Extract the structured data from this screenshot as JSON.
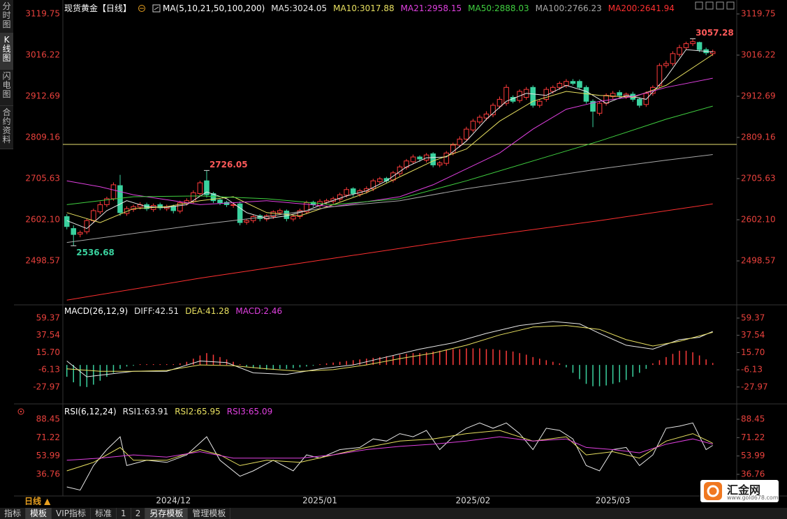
{
  "sidebar": {
    "tabs": [
      "分时图",
      "K线图",
      "闪电图",
      "合约资料"
    ]
  },
  "period": "日线 ▲",
  "toolbar": [
    "指标",
    "模板",
    "VIP指标",
    "标准",
    "1",
    "2",
    "另存模板",
    "管理模板"
  ],
  "logo": {
    "name": "汇金网",
    "url": "www.gold678.com"
  },
  "chart_data": [
    {
      "type": "candlestick",
      "title": "现货黄金【日线】",
      "indicator": "MA(5,10,21,50,100,200)",
      "up_color": "#ff3b3b",
      "down_color": "#3ad29f",
      "tick_color": "#e8413c",
      "xlim": [
        -0.6,
        100.6
      ],
      "xticks": [
        {
          "value": 16,
          "label": "2024/12"
        },
        {
          "value": 38,
          "label": "2025/01"
        },
        {
          "value": 61,
          "label": "2025/02"
        },
        {
          "value": 82,
          "label": "2025/03"
        }
      ],
      "ylim": [
        2389.8,
        3119.75
      ],
      "yticks": [
        3119.75,
        3016.22,
        2912.69,
        2809.16,
        2705.63,
        {
          "value": 2602.1,
          "label": "2602.10"
        },
        2498.57
      ],
      "hline": {
        "value": 2791.6,
        "color": "#e8e070"
      },
      "candles": {
        "open": [
          2610,
          2580,
          2566,
          2572,
          2600,
          2622,
          2640,
          2655,
          2688,
          2618,
          2628,
          2634,
          2640,
          2628,
          2640,
          2630,
          2636,
          2624,
          2644,
          2648,
          2668,
          2700,
          2668,
          2652,
          2646,
          2638,
          2642,
          2596,
          2600,
          2612,
          2604,
          2610,
          2620,
          2624,
          2604,
          2610,
          2622,
          2646,
          2638,
          2646,
          2648,
          2654,
          2664,
          2680,
          2666,
          2674,
          2680,
          2698,
          2706,
          2702,
          2718,
          2734,
          2748,
          2760,
          2752,
          2768,
          2740,
          2744,
          2770,
          2790,
          2805,
          2828,
          2848,
          2858,
          2866,
          2888,
          2895,
          2910,
          2902,
          2910,
          2935,
          2890,
          2905,
          2925,
          2935,
          2940,
          2950,
          2950,
          2935,
          2900,
          2870,
          2895,
          2912,
          2922,
          2912,
          2918,
          2905,
          2892,
          2920,
          2940,
          2990,
          2995,
          3018,
          3035,
          3045,
          3048,
          3030,
          3020
        ],
        "high": [
          2616,
          2588,
          2575,
          2605,
          2630,
          2648,
          2660,
          2696,
          2715,
          2636,
          2640,
          2646,
          2645,
          2643,
          2645,
          2640,
          2640,
          2650,
          2656,
          2676,
          2700,
          2726.05,
          2672,
          2656,
          2650,
          2646,
          2648,
          2604,
          2615,
          2616,
          2616,
          2626,
          2630,
          2628,
          2615,
          2630,
          2650,
          2650,
          2654,
          2655,
          2660,
          2670,
          2684,
          2684,
          2680,
          2686,
          2705,
          2710,
          2710,
          2725,
          2740,
          2755,
          2766,
          2764,
          2770,
          2772,
          2750,
          2775,
          2796,
          2812,
          2836,
          2856,
          2866,
          2875,
          2896,
          2912,
          2942,
          2915,
          2930,
          2936,
          2940,
          2905,
          2936,
          2940,
          2950,
          2956,
          2956,
          2955,
          2940,
          2905,
          2900,
          2920,
          2926,
          2928,
          2922,
          2924,
          2910,
          2925,
          2940,
          2996,
          3002,
          3026,
          3042,
          3050,
          3057.28,
          3050,
          3035,
          3030
        ],
        "low": [
          2578,
          2536.68,
          2558,
          2566,
          2594,
          2616,
          2634,
          2650,
          2612,
          2612,
          2622,
          2628,
          2624,
          2622,
          2626,
          2624,
          2618,
          2618,
          2638,
          2642,
          2662,
          2658,
          2644,
          2639,
          2634,
          2632,
          2588,
          2590,
          2594,
          2598,
          2598,
          2604,
          2614,
          2598,
          2598,
          2604,
          2616,
          2634,
          2632,
          2640,
          2642,
          2648,
          2658,
          2660,
          2660,
          2668,
          2674,
          2692,
          2694,
          2696,
          2712,
          2728,
          2742,
          2748,
          2746,
          2734,
          2734,
          2738,
          2764,
          2784,
          2800,
          2822,
          2842,
          2852,
          2860,
          2882,
          2889,
          2895,
          2896,
          2904,
          2884,
          2884,
          2899,
          2919,
          2929,
          2934,
          2940,
          2929,
          2894,
          2835,
          2864,
          2889,
          2906,
          2909,
          2906,
          2899,
          2884,
          2886,
          2914,
          2934,
          2984,
          2989,
          3012,
          3029,
          3039,
          3024,
          3016,
          3014
        ],
        "close": [
          2585,
          2565,
          2570,
          2600,
          2625,
          2640,
          2655,
          2690,
          2620,
          2630,
          2635,
          2640,
          2630,
          2638,
          2632,
          2635,
          2625,
          2645,
          2650,
          2670,
          2695,
          2665,
          2650,
          2645,
          2640,
          2640,
          2595,
          2600,
          2610,
          2605,
          2612,
          2622,
          2625,
          2605,
          2610,
          2625,
          2645,
          2640,
          2648,
          2650,
          2655,
          2665,
          2678,
          2668,
          2675,
          2680,
          2700,
          2705,
          2700,
          2720,
          2735,
          2750,
          2760,
          2755,
          2765,
          2740,
          2745,
          2770,
          2790,
          2805,
          2830,
          2850,
          2860,
          2868,
          2890,
          2905,
          2935,
          2900,
          2925,
          2930,
          2890,
          2900,
          2930,
          2935,
          2945,
          2950,
          2945,
          2935,
          2900,
          2875,
          2895,
          2915,
          2920,
          2915,
          2918,
          2905,
          2890,
          2920,
          2935,
          2990,
          2995,
          3020,
          3035,
          3045,
          3050,
          3030,
          3022,
          3025
        ]
      },
      "annotations": [
        {
          "x": 94,
          "value": 3057.28,
          "color": "#ff5a5a"
        },
        {
          "x": 21,
          "value": 2726.05,
          "color": "#ff5a5a"
        },
        {
          "x": 1,
          "value": 2536.68,
          "color": "#3ad29f"
        }
      ],
      "series": [
        {
          "name": "MA5:3024.05",
          "color": "#e8e8e8",
          "x": [
            0,
            3,
            6,
            9,
            12,
            15,
            18,
            21,
            24,
            27,
            30,
            33,
            36,
            39,
            42,
            45,
            48,
            51,
            54,
            57,
            60,
            63,
            66,
            69,
            72,
            75,
            78,
            81,
            84,
            87,
            90,
            93,
            97
          ],
          "values": [
            2600,
            2580,
            2625,
            2650,
            2635,
            2633,
            2640,
            2672,
            2655,
            2620,
            2605,
            2612,
            2625,
            2645,
            2662,
            2675,
            2700,
            2735,
            2758,
            2760,
            2800,
            2855,
            2900,
            2920,
            2915,
            2940,
            2925,
            2895,
            2915,
            2905,
            2960,
            3030,
            3024.05
          ]
        },
        {
          "name": "MA10:3017.88",
          "color": "#e8e060",
          "x": [
            0,
            5,
            10,
            15,
            20,
            25,
            30,
            35,
            40,
            45,
            50,
            55,
            60,
            65,
            70,
            75,
            80,
            85,
            90,
            97
          ],
          "values": [
            2620,
            2595,
            2630,
            2635,
            2650,
            2660,
            2620,
            2612,
            2640,
            2670,
            2710,
            2750,
            2780,
            2850,
            2900,
            2925,
            2915,
            2910,
            2940,
            3017.88
          ]
        },
        {
          "name": "MA21:2958.15",
          "color": "#e040e0",
          "x": [
            0,
            5,
            10,
            20,
            30,
            40,
            50,
            55,
            60,
            65,
            70,
            75,
            80,
            85,
            90,
            97
          ],
          "values": [
            2700,
            2685,
            2665,
            2640,
            2650,
            2635,
            2660,
            2690,
            2730,
            2770,
            2830,
            2880,
            2900,
            2912,
            2935,
            2958.15
          ]
        },
        {
          "name": "MA50:2888.03",
          "color": "#40d040",
          "x": [
            0,
            10,
            20,
            30,
            40,
            50,
            60,
            70,
            80,
            90,
            97
          ],
          "values": [
            2640,
            2660,
            2662,
            2655,
            2640,
            2655,
            2700,
            2750,
            2800,
            2855,
            2888.03
          ]
        },
        {
          "name": "MA100:2766.23",
          "color": "#a8a8a8",
          "x": [
            0,
            20,
            30,
            40,
            50,
            60,
            70,
            80,
            90,
            97
          ],
          "values": [
            2545,
            2590,
            2610,
            2635,
            2650,
            2680,
            2705,
            2730,
            2752,
            2766.23
          ]
        },
        {
          "name": "MA200:2641.94",
          "color": "#ff3030",
          "x": [
            0,
            20,
            40,
            60,
            80,
            97
          ],
          "values": [
            2400,
            2455,
            2505,
            2555,
            2600,
            2641.94
          ]
        }
      ]
    },
    {
      "type": "macd",
      "title": "MACD(26,12,9)",
      "up_color": "#ff3b3b",
      "down_color": "#3ad29f",
      "tick_color": "#e8413c",
      "ylim": [
        -48.48,
        69.07
      ],
      "yticks": [
        59.37,
        37.54,
        {
          "value": 15.7,
          "label": "15.70"
        },
        -6.13,
        -27.97
      ],
      "histogram": {
        "name": "MACD:2.46",
        "color": "#e040e0",
        "values": [
          -15,
          -22,
          -27,
          -28,
          -25,
          -20,
          -15,
          -10,
          -5,
          -2,
          -1,
          1,
          1,
          1,
          1,
          1,
          1,
          2,
          4,
          8,
          12,
          15,
          13,
          10,
          7,
          4,
          1,
          -2,
          -4,
          -5,
          -6,
          -6,
          -5,
          -5,
          -4,
          -3,
          -2,
          -1,
          1,
          2,
          3,
          4,
          5,
          6,
          7,
          8,
          9,
          10,
          11,
          12,
          13,
          14,
          15,
          15,
          16,
          17,
          18,
          19,
          20,
          20,
          21,
          21,
          21,
          20,
          20,
          19,
          18,
          17,
          15,
          13,
          10,
          8,
          6,
          4,
          2,
          -3,
          -10,
          -18,
          -24,
          -27,
          -27,
          -26,
          -24,
          -22,
          -19,
          -15,
          -10,
          -5,
          2,
          6,
          10,
          14,
          18,
          18,
          16,
          12,
          7,
          2.46
        ]
      },
      "series": [
        {
          "name": "DIFF:42.51",
          "color": "#e8e8e8",
          "x": [
            0,
            3,
            6,
            10,
            15,
            20,
            24,
            28,
            33,
            38,
            43,
            48,
            53,
            58,
            63,
            68,
            73,
            77,
            80,
            84,
            88,
            92,
            95,
            97
          ],
          "values": [
            5,
            -15,
            -12,
            -8,
            -8,
            5,
            3,
            -10,
            -12,
            -5,
            0,
            10,
            20,
            28,
            40,
            50,
            55,
            52,
            40,
            25,
            20,
            32,
            35,
            42.51
          ]
        },
        {
          "name": "DEA:41.28",
          "color": "#e8e060",
          "x": [
            0,
            5,
            10,
            15,
            20,
            25,
            30,
            35,
            40,
            45,
            50,
            55,
            60,
            65,
            70,
            75,
            80,
            84,
            88,
            92,
            97
          ],
          "values": [
            -5,
            -8,
            -8,
            -7,
            0,
            -1,
            -5,
            -8,
            -6,
            0,
            8,
            15,
            25,
            38,
            48,
            50,
            45,
            32,
            24,
            30,
            41.28
          ]
        }
      ]
    },
    {
      "type": "rsi",
      "title": "RSI(6,12,24)",
      "tick_color": "#e8413c",
      "ylim": [
        17.13,
        98.92
      ],
      "yticks": [
        88.45,
        71.22,
        53.99,
        36.76
      ],
      "series": [
        {
          "name": "RSI1:63.91",
          "color": "#e8e8e8",
          "x": [
            0,
            2,
            4,
            6,
            8,
            9,
            12,
            15,
            18,
            21,
            23,
            26,
            28,
            31,
            34,
            36,
            38,
            41,
            44,
            46,
            48,
            50,
            52,
            54,
            56,
            58,
            60,
            62,
            64,
            66,
            68,
            70,
            72,
            74,
            76,
            78,
            80,
            82,
            84,
            86,
            88,
            90,
            92,
            94,
            96,
            97
          ],
          "values": [
            25,
            22,
            45,
            60,
            72,
            45,
            50,
            48,
            55,
            72,
            50,
            35,
            40,
            50,
            40,
            55,
            52,
            60,
            62,
            70,
            68,
            75,
            72,
            78,
            60,
            72,
            80,
            85,
            80,
            85,
            75,
            60,
            80,
            78,
            70,
            45,
            40,
            60,
            62,
            45,
            55,
            80,
            82,
            85,
            60,
            63.91
          ]
        },
        {
          "name": "RSI2:65.95",
          "color": "#e8e060",
          "x": [
            0,
            4,
            8,
            10,
            15,
            20,
            23,
            26,
            30,
            35,
            40,
            45,
            50,
            55,
            60,
            65,
            70,
            75,
            78,
            82,
            86,
            90,
            94,
            97
          ],
          "values": [
            40,
            48,
            62,
            50,
            50,
            60,
            55,
            45,
            50,
            48,
            55,
            62,
            68,
            70,
            75,
            78,
            68,
            72,
            55,
            58,
            52,
            68,
            75,
            65.95
          ]
        },
        {
          "name": "RSI3:65.09",
          "color": "#e040e0",
          "x": [
            0,
            5,
            10,
            15,
            20,
            25,
            30,
            35,
            40,
            45,
            50,
            55,
            60,
            65,
            70,
            75,
            78,
            82,
            86,
            90,
            94,
            97
          ],
          "values": [
            50,
            52,
            55,
            53,
            58,
            52,
            52,
            52,
            55,
            60,
            63,
            65,
            68,
            72,
            68,
            70,
            62,
            60,
            57,
            65,
            70,
            65.09
          ]
        }
      ]
    }
  ]
}
